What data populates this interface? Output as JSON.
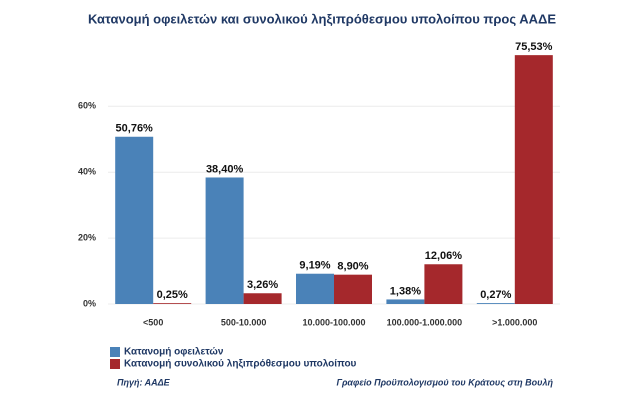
{
  "chart_data": {
    "type": "bar",
    "title": "Κατανομή οφειλετών και συνολικού ληξιπρόθεσμου υπολοίπου προς ΑΑΔΕ",
    "categories": [
      "<500",
      "500-10.000",
      "10.000-100.000",
      "100.000-1.000.000",
      ">1.000.000"
    ],
    "series": [
      {
        "name": "Κατανομή οφειλετών",
        "color": "#4a82b8",
        "values": [
          50.76,
          38.4,
          9.19,
          1.38,
          0.27
        ],
        "value_labels": [
          "50,76%",
          "38,40%",
          "9,19%",
          "1,38%",
          "0,27%"
        ]
      },
      {
        "name": "Κατανομή συνολικού ληξιπρόθεσμου υπολοίπου",
        "color": "#a5282c",
        "values": [
          0.25,
          3.26,
          8.9,
          12.06,
          75.53
        ],
        "value_labels": [
          "0,25%",
          "3,26%",
          "8,90%",
          "12,06%",
          "75,53%"
        ]
      }
    ],
    "ylim": [
      0,
      78
    ],
    "yticks": [
      {
        "value": 0,
        "label": "0%"
      },
      {
        "value": 20,
        "label": "20%"
      },
      {
        "value": 40,
        "label": "40%"
      },
      {
        "value": 60,
        "label": "60%"
      }
    ],
    "grid": true,
    "legend": "bottom-left",
    "source": "Πηγή: ΑΑΔΕ",
    "credit": "Γραφείο Προϋπολογισμού του Κράτους στη Βουλή"
  }
}
